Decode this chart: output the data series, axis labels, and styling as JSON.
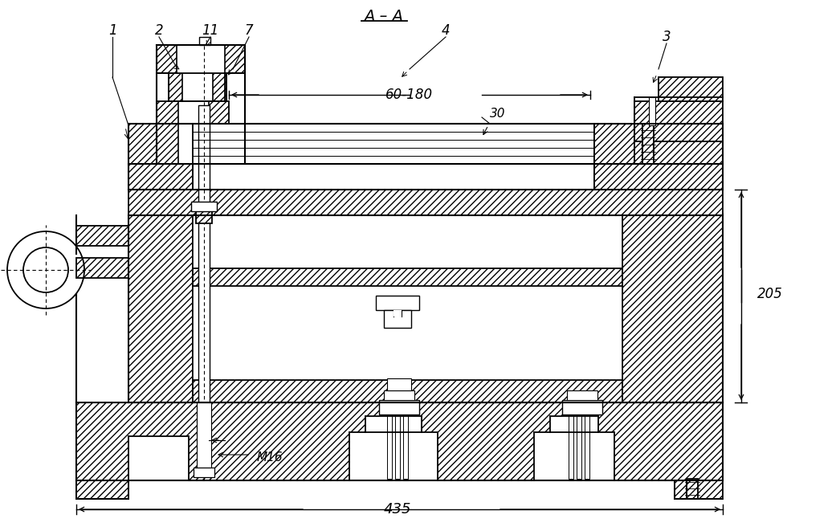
{
  "bg_color": "#ffffff",
  "line_color": "#000000",
  "section_label": "A – A",
  "dim_60_180": "60-180",
  "dim_30": "30",
  "dim_205": "205",
  "dim_435": "435",
  "dim_M16": "M16",
  "parts": [
    "1",
    "2",
    "11",
    "7",
    "4",
    "3"
  ]
}
